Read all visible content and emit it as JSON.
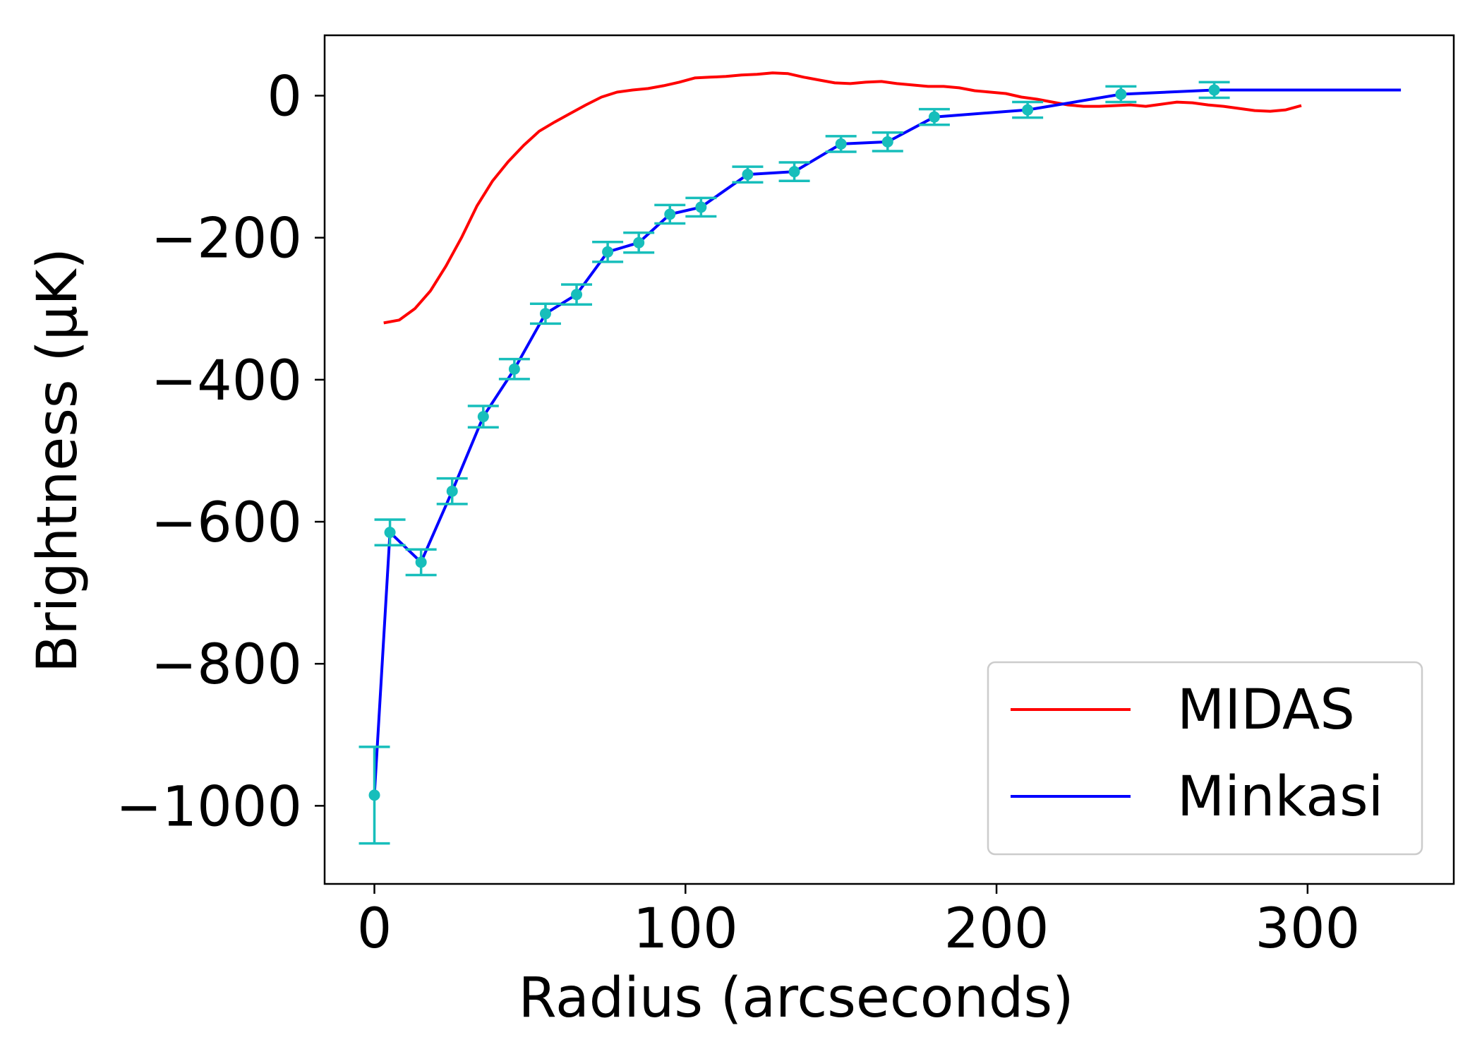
{
  "chart_data": {
    "type": "line",
    "xlabel": "Radius (arcseconds)",
    "ylabel": "Brightness (μK)",
    "xlim": [
      -16,
      347
    ],
    "ylim": [
      -1110,
      85
    ],
    "xticks": [
      0,
      100,
      200,
      300
    ],
    "yticks": [
      0,
      -200,
      -400,
      -600,
      -800,
      -1000
    ],
    "xtick_labels": [
      "0",
      "100",
      "200",
      "300"
    ],
    "ytick_labels": [
      "0",
      "−200",
      "−400",
      "−600",
      "−800",
      "−1000"
    ],
    "grid": false,
    "legend_position": "lower-right",
    "series": [
      {
        "name": "MIDAS",
        "color": "#ff0000",
        "x": [
          3,
          8,
          13,
          18,
          23,
          28,
          33,
          38,
          43,
          48,
          53,
          58,
          63,
          68,
          73,
          78,
          83,
          88,
          93,
          98,
          103,
          108,
          113,
          118,
          123,
          128,
          133,
          138,
          143,
          148,
          153,
          158,
          163,
          168,
          173,
          178,
          183,
          188,
          193,
          198,
          203,
          208,
          213,
          218,
          223,
          228,
          233,
          238,
          243,
          248,
          253,
          258,
          263,
          268,
          273,
          278,
          283,
          288,
          293,
          298
        ],
        "y": [
          -320,
          -316,
          -300,
          -275,
          -240,
          -200,
          -155,
          -120,
          -93,
          -70,
          -50,
          -37,
          -25,
          -13,
          -2,
          5,
          8,
          10,
          14,
          19,
          25,
          26,
          27,
          29,
          30,
          32,
          31,
          26,
          22,
          18,
          17,
          19,
          20,
          17,
          15,
          13,
          13,
          11,
          7,
          5,
          3,
          -2,
          -5,
          -9,
          -13,
          -15,
          -15,
          -14,
          -13,
          -15,
          -12,
          -9,
          -10,
          -13,
          -15,
          -18,
          -21,
          -22,
          -20,
          -14
        ]
      },
      {
        "name": "Minkasi",
        "color": "#0000ff",
        "x": [
          0,
          5,
          15,
          25,
          35,
          45,
          55,
          65,
          75,
          85,
          95,
          105,
          120,
          135,
          150,
          165,
          180,
          210,
          240,
          270,
          330
        ],
        "y": [
          -985,
          -615,
          -657,
          -557,
          -452,
          -385,
          -307,
          -280,
          -220,
          -207,
          -167,
          -157,
          -111,
          -107,
          -68,
          -65,
          -30,
          -20,
          2,
          8,
          8
        ]
      }
    ],
    "errorbars": {
      "color": "#17bebb",
      "x": [
        0,
        5,
        15,
        25,
        35,
        45,
        55,
        65,
        75,
        85,
        95,
        105,
        120,
        135,
        150,
        165,
        180,
        210,
        240,
        270
      ],
      "y": [
        -985,
        -615,
        -657,
        -557,
        -452,
        -385,
        -307,
        -280,
        -220,
        -207,
        -167,
        -157,
        -111,
        -107,
        -68,
        -65,
        -30,
        -20,
        2,
        8
      ],
      "err": [
        68,
        18,
        18,
        18,
        15,
        14,
        14,
        14,
        14,
        14,
        13,
        13,
        11,
        13,
        11,
        13,
        11,
        11,
        11,
        11
      ]
    }
  }
}
